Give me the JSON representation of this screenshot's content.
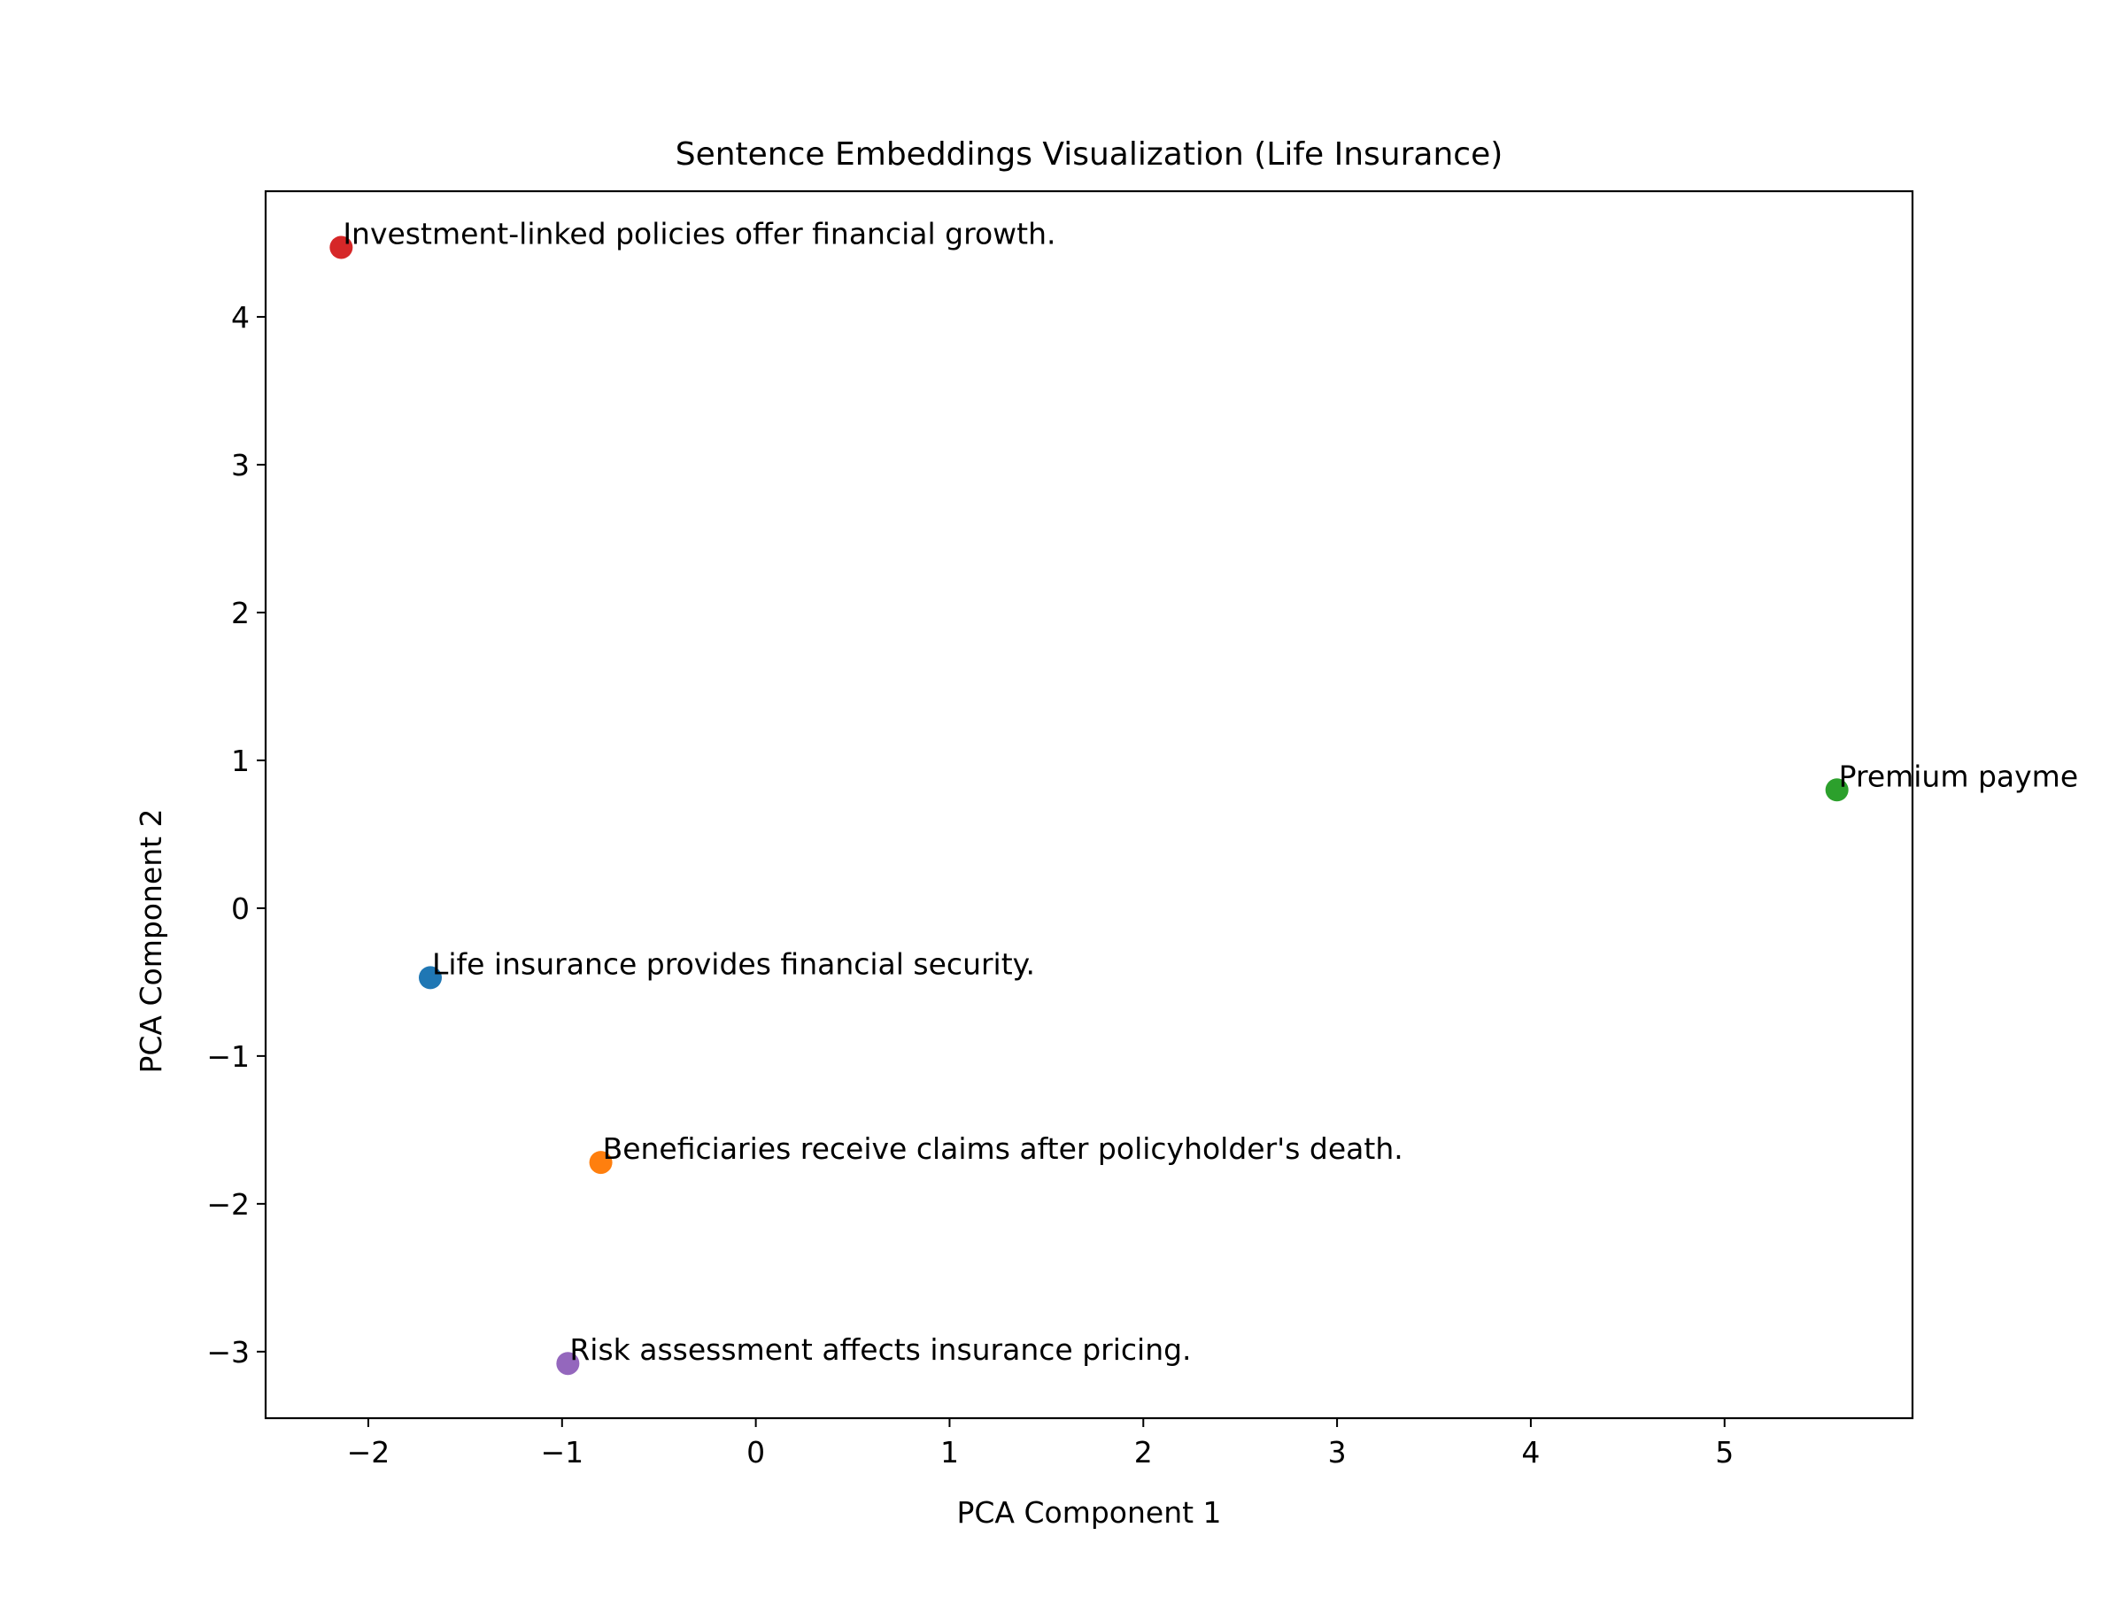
{
  "chart_data": {
    "type": "scatter",
    "title": "Sentence Embeddings Visualization (Life Insurance)",
    "xlabel": "PCA Component 1",
    "ylabel": "PCA Component 2",
    "xlim": [
      -2.53,
      5.97
    ],
    "ylim": [
      -3.45,
      4.85
    ],
    "xticks": [
      -2,
      -1,
      0,
      1,
      2,
      3,
      4,
      5
    ],
    "yticks": [
      -3,
      -2,
      -1,
      0,
      1,
      2,
      3,
      4
    ],
    "tick_labels": {
      "x": [
        "−2",
        "−1",
        "0",
        "1",
        "2",
        "3",
        "4",
        "5"
      ],
      "y": [
        "−3",
        "−2",
        "−1",
        "0",
        "1",
        "2",
        "3",
        "4"
      ]
    },
    "grid": false,
    "legend": "none",
    "points": [
      {
        "x": -1.68,
        "y": -0.47,
        "label": "Life insurance provides financial security.",
        "color": "#1f77b4"
      },
      {
        "x": -0.8,
        "y": -1.72,
        "label": "Beneficiaries receive claims after policyholder's death.",
        "color": "#ff7f0e"
      },
      {
        "x": 5.58,
        "y": 0.8,
        "label": "Premium payme",
        "color": "#2ca02c"
      },
      {
        "x": -2.14,
        "y": 4.47,
        "label": "Investment-linked policies offer financial growth.",
        "color": "#d62728"
      },
      {
        "x": -0.97,
        "y": -3.08,
        "label": "Risk assessment affects insurance pricing.",
        "color": "#9467bd"
      }
    ]
  }
}
